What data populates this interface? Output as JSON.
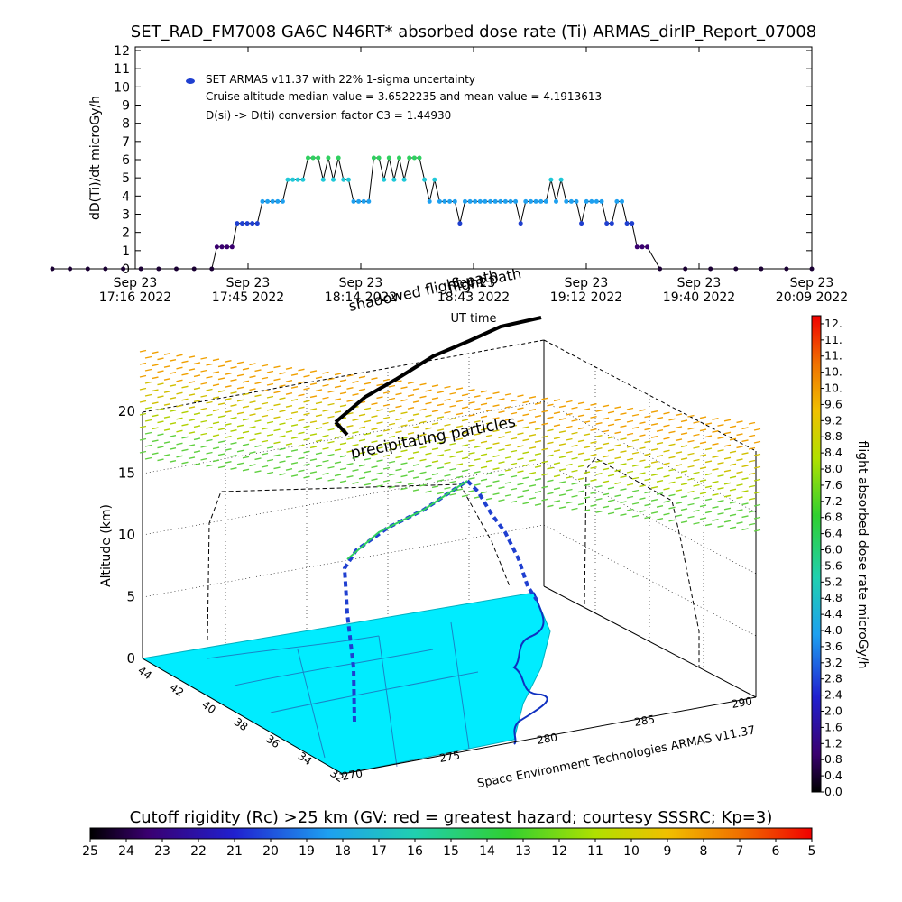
{
  "title": "SET_RAD_FM7008  GA6C N46RT* absorbed dose rate (Ti) ARMAS_dirIP_Report_07008",
  "chart_data": [
    {
      "type": "line",
      "ylabel": "dD(Ti)/dt microGy/h",
      "xlabel": "UT time",
      "ylim": [
        0,
        12
      ],
      "yticks": [
        "0",
        "1",
        "2",
        "3",
        "4",
        "5",
        "6",
        "7",
        "8",
        "9",
        "10",
        "11",
        "12"
      ],
      "xticks": [
        {
          "l1": "Sep 23",
          "l2": "17:16 2022"
        },
        {
          "l1": "Sep 23",
          "l2": "17:45 2022"
        },
        {
          "l1": "Sep 23",
          "l2": "18:14 2022"
        },
        {
          "l1": "Sep 23",
          "l2": "18:43 2022"
        },
        {
          "l1": "Sep 23",
          "l2": "19:12 2022"
        },
        {
          "l1": "Sep 23",
          "l2": "19:40 2022"
        },
        {
          "l1": "Sep 23",
          "l2": "20:09 2022"
        }
      ],
      "legend": {
        "placement": "top-left",
        "series_label": "SET ARMAS v11.37 with 22% 1-sigma uncertainty",
        "note1": "Cruise altitude median value = 3.6522235 and mean value = 4.1913613",
        "note2": "D(si) -> D(ti) conversion factor C3 = 1.44930"
      },
      "x_minutes": [
        0,
        7,
        14,
        21,
        28,
        35,
        42,
        49,
        56,
        63,
        65,
        67,
        69,
        71,
        73,
        75,
        77,
        79,
        81,
        83,
        85,
        87,
        89,
        91,
        93,
        95,
        97,
        99,
        101,
        103,
        105,
        107,
        109,
        111,
        113,
        115,
        117,
        119,
        121,
        123,
        125,
        127,
        129,
        131,
        133,
        135,
        137,
        139,
        141,
        143,
        145,
        147,
        149,
        151,
        153,
        155,
        157,
        159,
        161,
        163,
        165,
        167,
        169,
        171,
        173,
        175,
        177,
        179,
        181,
        183,
        185,
        187,
        189,
        191,
        193,
        195,
        197,
        199,
        201,
        203,
        205,
        207,
        209,
        211,
        213,
        215,
        217,
        219,
        221,
        223,
        225,
        227,
        229,
        231,
        233,
        235,
        240,
        250,
        260,
        270,
        280,
        290,
        300
      ],
      "values": [
        0,
        0,
        0,
        0,
        0,
        0,
        0,
        0,
        0,
        0,
        1.2,
        1.2,
        1.2,
        1.2,
        2.5,
        2.5,
        2.5,
        2.5,
        2.5,
        3.7,
        3.7,
        3.7,
        3.7,
        3.7,
        4.9,
        4.9,
        4.9,
        4.9,
        6.1,
        6.1,
        6.1,
        4.9,
        6.1,
        4.9,
        6.1,
        4.9,
        4.9,
        3.7,
        3.7,
        3.7,
        3.7,
        6.1,
        6.1,
        4.9,
        6.1,
        4.9,
        6.1,
        4.9,
        6.1,
        6.1,
        6.1,
        4.9,
        3.7,
        4.9,
        3.7,
        3.7,
        3.7,
        3.7,
        2.5,
        3.7,
        3.7,
        3.7,
        3.7,
        3.7,
        3.7,
        3.7,
        3.7,
        3.7,
        3.7,
        3.7,
        2.5,
        3.7,
        3.7,
        3.7,
        3.7,
        3.7,
        4.9,
        3.7,
        4.9,
        3.7,
        3.7,
        3.7,
        2.5,
        3.7,
        3.7,
        3.7,
        3.7,
        2.5,
        2.5,
        3.7,
        3.7,
        2.5,
        2.5,
        1.2,
        1.2,
        1.2,
        0,
        0,
        0,
        0,
        0,
        0,
        0
      ]
    },
    {
      "type": "scatter",
      "xlabel": "",
      "ylabel": "Altitude (km)",
      "zticks": [
        "0",
        "5",
        "10",
        "15",
        "20"
      ],
      "lat_ticks": [
        "44",
        "42",
        "40",
        "38",
        "36",
        "34",
        "32"
      ],
      "lon_ticks": [
        "270",
        "275",
        "280",
        "285",
        "290"
      ],
      "annotations": [
        "precipitating particles",
        "shadowed flight path",
        "flight path"
      ],
      "credit": "Space Environment Technologies ARMAS v11.37"
    }
  ],
  "colorbar_right": {
    "label": "flight absorbed dose rate microGy/h",
    "ticks": [
      "0.0",
      "0.4",
      "0.8",
      "1.2",
      "1.6",
      "2.0",
      "2.4",
      "2.8",
      "3.2",
      "3.6",
      "4.0",
      "4.4",
      "4.8",
      "5.2",
      "5.6",
      "6.0",
      "6.4",
      "6.8",
      "7.2",
      "7.6",
      "8.0",
      "8.4",
      "8.8",
      "9.2",
      "9.6",
      "10.",
      "10.",
      "11.",
      "11.",
      "12."
    ]
  },
  "colorbar_bottom": {
    "label": "Cutoff rigidity (Rc) >25 km (GV: red = greatest hazard; courtesy SSSRC; Kp=3)",
    "ticks": [
      "25",
      "24",
      "23",
      "22",
      "21",
      "20",
      "19",
      "18",
      "17",
      "16",
      "15",
      "14",
      "13",
      "12",
      "11",
      "10",
      "9",
      "8",
      "7",
      "6",
      "5"
    ]
  },
  "colors": {
    "dark": "#1a0033",
    "blue": "#1f3fd0",
    "cyan": "#20c8d8",
    "green": "#30d060",
    "map_fill": "#00ecff"
  }
}
